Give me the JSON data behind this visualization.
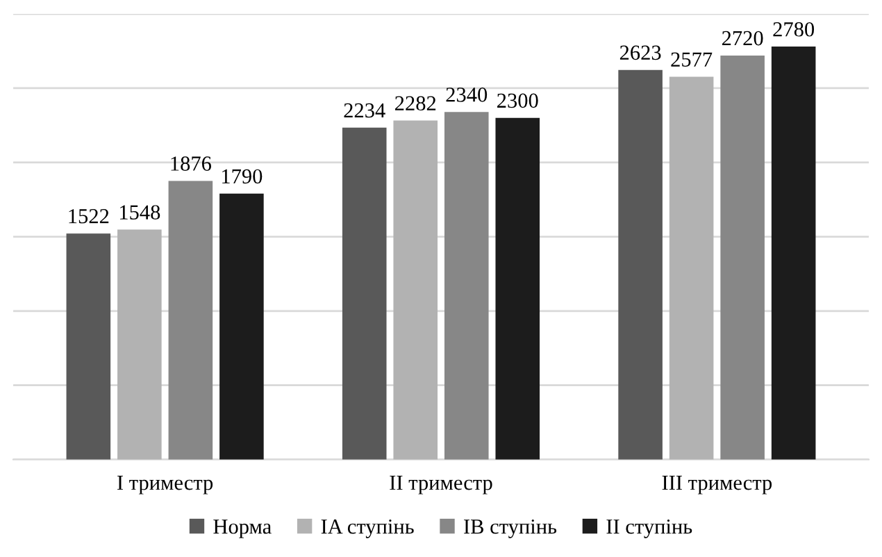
{
  "chart_data": {
    "type": "bar",
    "categories": [
      "I триместр",
      "II триместр",
      "III триместр"
    ],
    "series": [
      {
        "name": "Норма",
        "color": "#595959",
        "values": [
          1522,
          2234,
          2623
        ]
      },
      {
        "name": "IA ступінь",
        "color": "#b2b2b2",
        "values": [
          1548,
          2282,
          2577
        ]
      },
      {
        "name": "IB ступінь",
        "color": "#878787",
        "values": [
          1876,
          2340,
          2720
        ]
      },
      {
        "name": "II ступінь",
        "color": "#1c1c1c",
        "values": [
          1790,
          2300,
          2780
        ]
      }
    ],
    "ylim": [
      0,
      3000
    ],
    "yticks": [
      {
        "value": 0,
        "label": null
      },
      {
        "value": 500,
        "label": null
      },
      {
        "value": 1000,
        "label": null
      },
      {
        "value": 1500,
        "label": null
      },
      {
        "value": 2000,
        "label": null
      },
      {
        "value": 2500,
        "label": null
      },
      {
        "value": 3000,
        "label": null
      }
    ],
    "tick_labels": "x",
    "grid": "y",
    "legend": "bottom",
    "data_labels": true
  }
}
